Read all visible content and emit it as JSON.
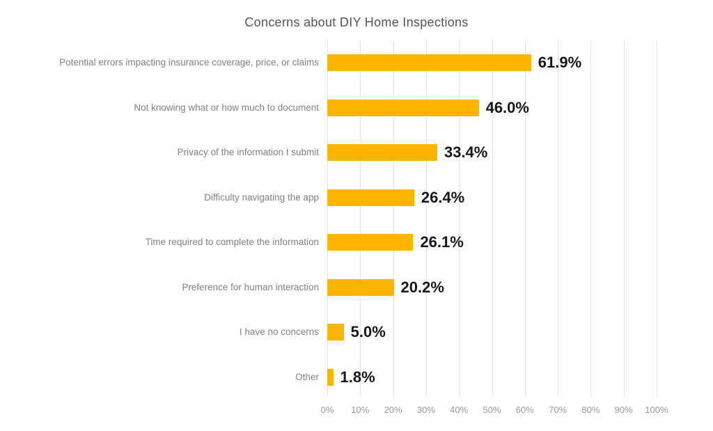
{
  "chart_data": {
    "type": "bar",
    "orientation": "horizontal",
    "title": "Concerns about DIY Home Inspections",
    "categories": [
      "Potential errors impacting insurance coverage, price, or claims",
      "Not knowing what or how much to document",
      "Privacy of the information I submit",
      "Difficulty navigating the app",
      "Time required to complete the information",
      "Preference for human interaction",
      "I have no concerns",
      "Other"
    ],
    "values": [
      61.9,
      46.0,
      33.4,
      26.4,
      26.1,
      20.2,
      5.0,
      1.8
    ],
    "value_labels": [
      "61.9%",
      "46.0%",
      "33.4%",
      "26.4%",
      "26.1%",
      "20.2%",
      "5.0%",
      "1.8%"
    ],
    "xlabel": "",
    "ylabel": "",
    "x_axis": {
      "min": 0,
      "max": 100,
      "step": 10,
      "ticks": [
        "0%",
        "10%",
        "20%",
        "30%",
        "40%",
        "50%",
        "60%",
        "70%",
        "80%",
        "90%",
        "100%"
      ]
    },
    "grid": true,
    "legend": false,
    "colors": {
      "bar": "#FFB400",
      "gridline": "#E4E4E4",
      "title": "#545454",
      "category_label": "#818181",
      "value_label": "#171717",
      "tick_label": "#9A9A9A",
      "background": "#FFFFFF"
    }
  }
}
